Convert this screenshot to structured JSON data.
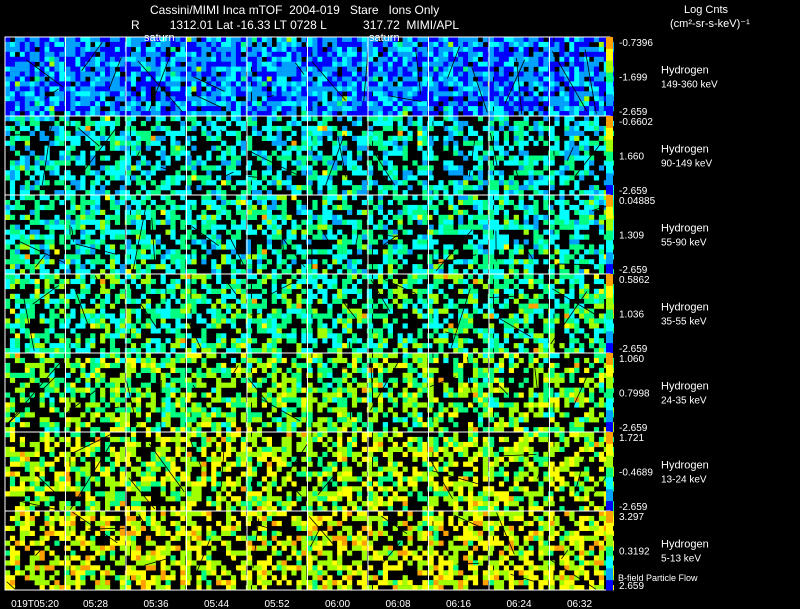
{
  "header": {
    "line1": "Cassini/MIMI Inca mTOF  2004-019   Stare   Ions Only",
    "r_label": "R",
    "r_value": "1312.01",
    "lat_label": "Lat",
    "lat_value": "-16.33",
    "lt_label": "LT",
    "lt_value": "0728",
    "l_label": "L",
    "l_value": "317.72",
    "source": "MIMI/APL"
  },
  "colorbar_title": {
    "line1": "Log Cnts",
    "line2": "(cm²-sr-s-keV)⁻¹"
  },
  "footer_note": "B-field Particle Flow",
  "panel_labels": {
    "saturn": "saturn"
  },
  "chart_data": {
    "type": "heatmap",
    "title": "Cassini/MIMI Inca mTOF  2004-019   Stare   Ions Only",
    "x_tick_labels": [
      "019T05:20",
      "05:28",
      "05:36",
      "05:44",
      "05:52",
      "06:00",
      "06:08",
      "06:16",
      "06:24",
      "06:32"
    ],
    "rows": [
      {
        "species": "Hydrogen",
        "energy": "149-360 keV",
        "cmax": "-0.7396",
        "cmid": "-1.699",
        "cmin": "-2.659",
        "mean_level": 0.18
      },
      {
        "species": "Hydrogen",
        "energy": "90-149 keV",
        "cmax": "-0.6602",
        "cmid": "1.660",
        "cmin": "-2.659",
        "mean_level": 0.38
      },
      {
        "species": "Hydrogen",
        "energy": "55-90 keV",
        "cmax": "0.04885",
        "cmid": "1.309",
        "cmin": "-2.659",
        "mean_level": 0.42
      },
      {
        "species": "Hydrogen",
        "energy": "35-55 keV",
        "cmax": "0.5862",
        "cmid": "1.036",
        "cmin": "-2.659",
        "mean_level": 0.48
      },
      {
        "species": "Hydrogen",
        "energy": "24-35 keV",
        "cmax": "1.060",
        "cmid": "0.7998",
        "cmin": "-2.659",
        "mean_level": 0.58
      },
      {
        "species": "Hydrogen",
        "energy": "13-24 keV",
        "cmax": "1.721",
        "cmid": "-0.4689",
        "cmin": "-2.659",
        "mean_level": 0.66
      },
      {
        "species": "Hydrogen",
        "energy": "5-13 keV",
        "cmax": "3.297",
        "cmid": "0.3192",
        "cmin": "2.659",
        "mean_level": 0.72
      }
    ],
    "colorscale": [
      "#0000ff",
      "#00a0ff",
      "#00ffff",
      "#00ff80",
      "#a0ff00",
      "#ffff00",
      "#ffa000",
      "#ff0000"
    ],
    "legend": "right"
  }
}
